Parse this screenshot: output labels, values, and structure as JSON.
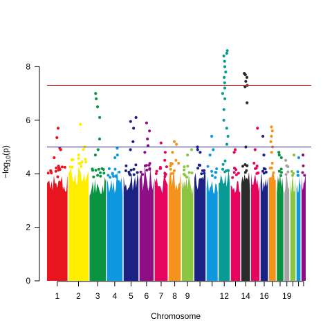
{
  "chart_data": {
    "type": "scatter",
    "kind": "manhattan",
    "title": "",
    "xlabel": "Chromosome",
    "ylabel": "−log₁₀(p)",
    "ylabel_parts": {
      "main": "−log",
      "sub": "10",
      "rest": "(p)"
    },
    "ylim": [
      0,
      9
    ],
    "y_ticks": [
      0,
      2,
      4,
      6,
      8
    ],
    "grid": false,
    "legend": "none",
    "thresholds": [
      {
        "value": 7.3,
        "color": "#d62728"
      },
      {
        "value": 5.0,
        "color": "#1f1fbf"
      }
    ],
    "x_tick_labels": [
      "1",
      "2",
      "3",
      "4",
      "5",
      "6",
      "7",
      "8",
      "9",
      "12",
      "14",
      "16",
      "19"
    ],
    "chromosomes": [
      {
        "chr": "1",
        "color": "#e8151f",
        "label": "1",
        "baseline": 3.8,
        "peaks": [
          5.7,
          5.35,
          4.9,
          4.6,
          4.95
        ]
      },
      {
        "chr": "2",
        "color": "#ffee00",
        "label": "2",
        "baseline": 4.1,
        "peaks": [
          5.85,
          5.0,
          4.9,
          4.7
        ]
      },
      {
        "chr": "3",
        "color": "#0a9440",
        "label": "3",
        "baseline": 3.7,
        "peaks": [
          7.0,
          6.8,
          6.5,
          6.1,
          5.3,
          4.9,
          4.7
        ]
      },
      {
        "chr": "4",
        "color": "#0e98e0",
        "label": "4",
        "baseline": 3.7,
        "peaks": [
          4.95,
          4.7,
          4.6
        ]
      },
      {
        "chr": "5",
        "color": "#1c2283",
        "label": "5",
        "baseline": 3.9,
        "peaks": [
          6.1,
          5.95,
          5.7,
          5.2,
          4.9
        ]
      },
      {
        "chr": "6",
        "color": "#8e0f85",
        "label": "6",
        "baseline": 3.9,
        "peaks": [
          5.9,
          5.6,
          5.3,
          5.05,
          4.8
        ]
      },
      {
        "chr": "7",
        "color": "#e5055f",
        "label": "7",
        "baseline": 3.8,
        "peaks": [
          5.15,
          4.8,
          4.5
        ]
      },
      {
        "chr": "8",
        "color": "#f5921c",
        "label": "8",
        "baseline": 3.9,
        "peaks": [
          5.2,
          5.1,
          4.8,
          4.5
        ]
      },
      {
        "chr": "9",
        "color": "#8bc541",
        "label": "9",
        "baseline": 3.8,
        "peaks": [
          4.9,
          4.7
        ]
      },
      {
        "chr": "10",
        "color": "#1c2283",
        "label": "",
        "baseline": 3.9,
        "peaks": [
          5.0,
          4.9,
          4.8
        ]
      },
      {
        "chr": "11",
        "color": "#0e98e0",
        "label": "",
        "baseline": 3.8,
        "peaks": [
          5.4,
          4.9,
          4.7
        ]
      },
      {
        "chr": "12",
        "color": "#0a9a94",
        "label": "12",
        "baseline": 4.0,
        "peaks": [
          8.6,
          8.5,
          8.4,
          8.2,
          8.0,
          7.8,
          7.6,
          7.4,
          7.2,
          7.0,
          6.8,
          6.4,
          6.0,
          5.7,
          5.4,
          5.1
        ]
      },
      {
        "chr": "13",
        "color": "#e5055f",
        "label": "",
        "baseline": 3.8,
        "peaks": [
          4.9,
          4.8
        ]
      },
      {
        "chr": "14",
        "color": "#2b2b2b",
        "label": "14",
        "baseline": 3.9,
        "peaks": [
          7.75,
          7.7,
          7.6,
          7.45,
          7.3,
          7.25,
          6.65,
          5.0
        ]
      },
      {
        "chr": "15",
        "color": "#e5055f",
        "label": "",
        "baseline": 3.9,
        "peaks": [
          5.7,
          4.9
        ]
      },
      {
        "chr": "16",
        "color": "#1c2283",
        "label": "16",
        "baseline": 3.7,
        "peaks": [
          5.4,
          4.7
        ]
      },
      {
        "chr": "17",
        "color": "#f5921c",
        "label": "",
        "baseline": 3.9,
        "peaks": [
          5.75,
          5.6,
          5.4,
          5.2,
          5.0,
          4.8
        ]
      },
      {
        "chr": "18",
        "color": "#0a9440",
        "label": "",
        "baseline": 3.8,
        "peaks": [
          4.8,
          4.7,
          4.6
        ]
      },
      {
        "chr": "19",
        "color": "#a3a3a3",
        "label": "19",
        "baseline": 3.8,
        "peaks": [
          4.5,
          4.3
        ]
      },
      {
        "chr": "20",
        "color": "#8bc541",
        "label": "",
        "baseline": 3.8,
        "peaks": [
          4.7
        ]
      },
      {
        "chr": "21",
        "color": "#0e98e0",
        "label": "",
        "baseline": 3.8,
        "peaks": [
          4.6
        ]
      },
      {
        "chr": "22",
        "color": "#8e0f85",
        "label": "",
        "baseline": 3.8,
        "peaks": [
          4.7
        ]
      }
    ]
  }
}
